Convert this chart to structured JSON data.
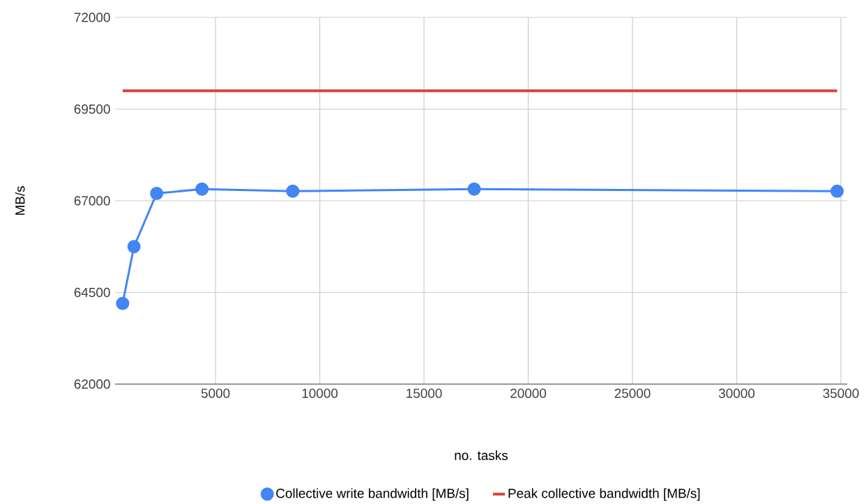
{
  "chart_data": {
    "type": "line",
    "xlabel": "no. tasks",
    "ylabel": "MB/s",
    "x": [
      544,
      1088,
      2176,
      4352,
      8704,
      17408,
      34816
    ],
    "series": [
      {
        "name": "Collective write bandwidth [MB/s]",
        "color": "#4285f4",
        "marker": "circle",
        "values": [
          64200,
          65750,
          67200,
          67320,
          67260,
          67320,
          67260
        ]
      },
      {
        "name": "Peak collective bandwidth [MB/s]",
        "color": "#db4437",
        "marker": "none",
        "x": [
          544,
          34816
        ],
        "values": [
          70000,
          70000
        ]
      }
    ],
    "xlim": [
      180,
      35300
    ],
    "ylim": [
      62000,
      72000
    ],
    "xticks": [
      5000,
      10000,
      15000,
      20000,
      25000,
      30000,
      35000
    ],
    "yticks": [
      62000,
      64500,
      67000,
      69500,
      72000
    ],
    "grid": true,
    "legend": "bottom",
    "line_style": "solid"
  }
}
